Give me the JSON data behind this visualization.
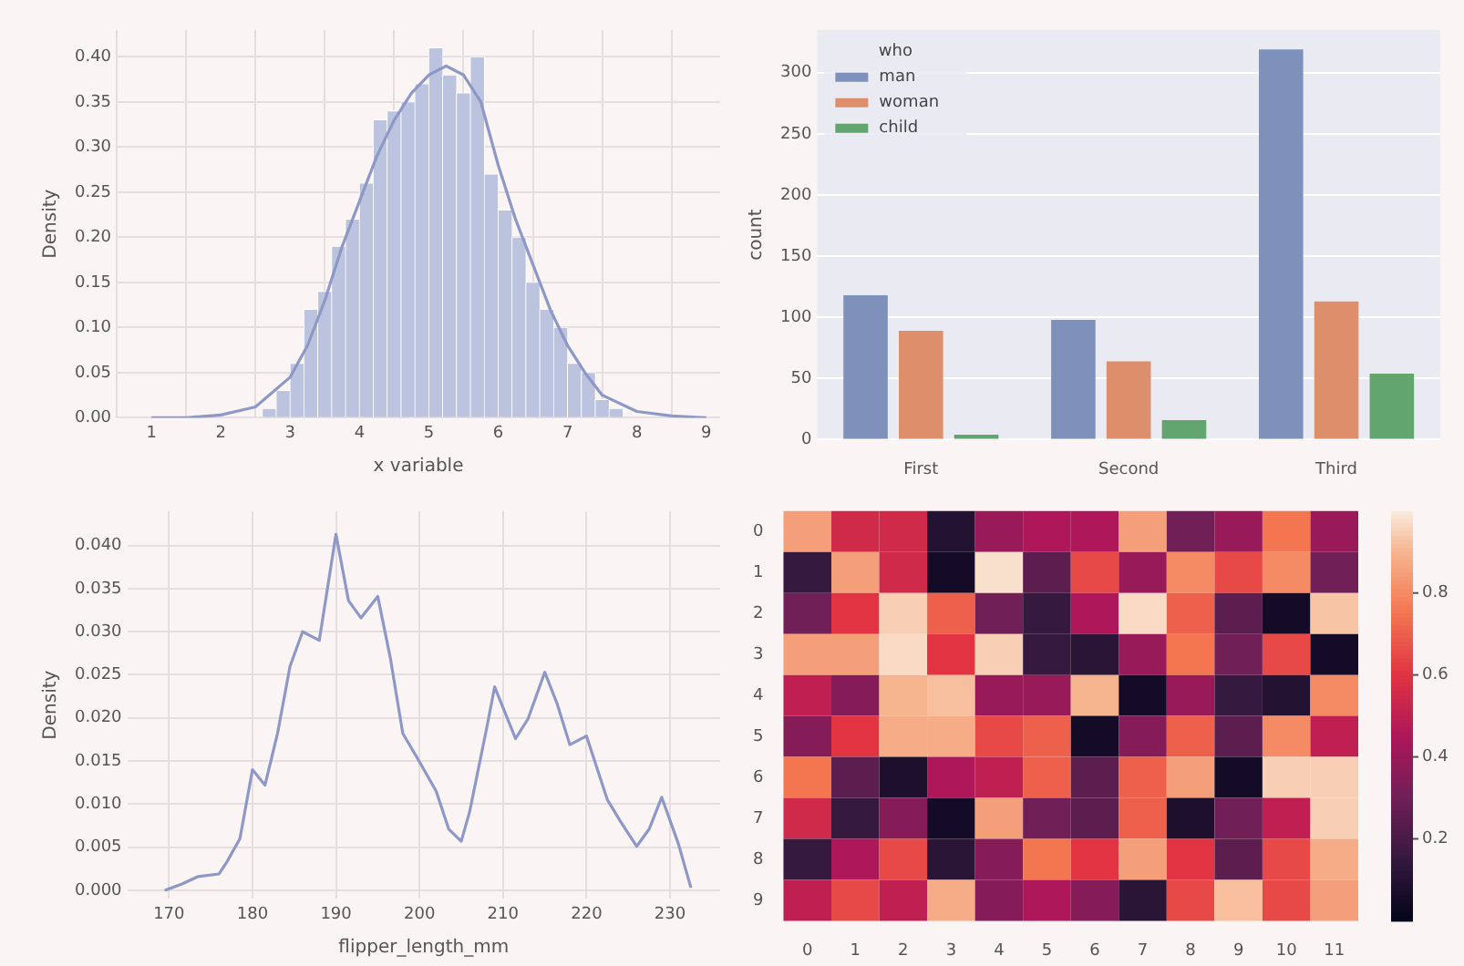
{
  "chart_data": [
    {
      "type": "histogram",
      "xlabel": "x variable",
      "ylabel": "Density",
      "bins": [
        2.6,
        2.8,
        3.0,
        3.2,
        3.4,
        3.6,
        3.8,
        4.0,
        4.2,
        4.4,
        4.6,
        4.8,
        5.0,
        5.2,
        5.4,
        5.6,
        5.8,
        6.0,
        6.2,
        6.4,
        6.6,
        6.8,
        7.0,
        7.2,
        7.4,
        7.6,
        7.8
      ],
      "values": [
        0.01,
        0.03,
        0.06,
        0.12,
        0.14,
        0.19,
        0.22,
        0.26,
        0.33,
        0.34,
        0.35,
        0.37,
        0.41,
        0.38,
        0.36,
        0.4,
        0.27,
        0.23,
        0.2,
        0.15,
        0.12,
        0.1,
        0.06,
        0.05,
        0.02,
        0.01
      ],
      "color": "#bcc3de",
      "series": [
        {
          "type": "line",
          "color": "#8e98c6",
          "x": [
            1,
            1.5,
            2,
            2.5,
            3,
            3.25,
            3.5,
            3.75,
            4,
            4.25,
            4.5,
            4.75,
            5,
            5.25,
            5.5,
            5.75,
            6,
            6.25,
            6.5,
            6.75,
            7,
            7.25,
            7.5,
            8,
            8.5,
            9
          ],
          "values": [
            0,
            0,
            0.003,
            0.012,
            0.045,
            0.08,
            0.13,
            0.19,
            0.24,
            0.29,
            0.33,
            0.36,
            0.38,
            0.39,
            0.38,
            0.35,
            0.28,
            0.22,
            0.17,
            0.12,
            0.08,
            0.05,
            0.025,
            0.007,
            0.002,
            0
          ]
        }
      ],
      "marker": "none",
      "xlim": [
        0.5,
        9.2
      ],
      "ylim": [
        0,
        0.43
      ],
      "xticks": [
        1,
        2,
        3,
        4,
        5,
        6,
        7,
        8,
        9
      ],
      "yticks": [
        {
          "value": 0,
          "label": "0.00"
        },
        {
          "value": 0.05,
          "label": "0.05"
        },
        {
          "value": 0.1,
          "label": "0.10"
        },
        {
          "value": 0.15,
          "label": "0.15"
        },
        {
          "value": 0.2,
          "label": "0.20"
        },
        {
          "value": 0.25,
          "label": "0.25"
        },
        {
          "value": 0.3,
          "label": "0.30"
        },
        {
          "value": 0.35,
          "label": "0.35"
        },
        {
          "value": 0.4,
          "label": "0.40"
        }
      ],
      "grid": true
    },
    {
      "type": "bar",
      "ylabel": "count",
      "legend_title": "who",
      "legend": "top left",
      "categories": [
        "First",
        "Second",
        "Third"
      ],
      "series": [
        {
          "name": "man",
          "color": "#7d91bb",
          "values": [
            118,
            98,
            319
          ]
        },
        {
          "name": "woman",
          "color": "#dd8f6b",
          "values": [
            89,
            64,
            113
          ]
        },
        {
          "name": "child",
          "color": "#63a56f",
          "values": [
            4,
            16,
            54
          ]
        }
      ],
      "ylim": [
        0,
        335
      ],
      "yticks": [
        0,
        50,
        100,
        150,
        200,
        250,
        300
      ],
      "grid": "y"
    },
    {
      "type": "line",
      "xlabel": "flipper_length_mm",
      "ylabel": "Density",
      "color": "#8e98c6",
      "marker": "none",
      "x": [
        169.5,
        171.5,
        173.5,
        176,
        177,
        178.5,
        180,
        181.5,
        183,
        184.5,
        186,
        188,
        190,
        191.5,
        193,
        195,
        196.5,
        198,
        200,
        202,
        203.5,
        205,
        206,
        208,
        209,
        211.5,
        213,
        215,
        216.5,
        218,
        220,
        222.5,
        224,
        226,
        227.5,
        229,
        231,
        232.5
      ],
      "values": [
        0,
        0.0007,
        0.0016,
        0.0019,
        0.0034,
        0.006,
        0.014,
        0.0122,
        0.0182,
        0.026,
        0.03,
        0.029,
        0.0413,
        0.0336,
        0.0316,
        0.0341,
        0.027,
        0.0182,
        0.0149,
        0.0115,
        0.0071,
        0.0057,
        0.0091,
        0.0186,
        0.0236,
        0.0176,
        0.0199,
        0.0253,
        0.0216,
        0.0169,
        0.0179,
        0.0105,
        0.0081,
        0.0051,
        0.0071,
        0.0108,
        0.0054,
        0.0003
      ],
      "xlim": [
        165,
        236
      ],
      "ylim": [
        -0.001,
        0.044
      ],
      "xticks": [
        170,
        180,
        190,
        200,
        210,
        220,
        230
      ],
      "yticks": [
        {
          "value": 0,
          "label": "0.000"
        },
        {
          "value": 0.005,
          "label": "0.005"
        },
        {
          "value": 0.01,
          "label": "0.010"
        },
        {
          "value": 0.015,
          "label": "0.015"
        },
        {
          "value": 0.02,
          "label": "0.020"
        },
        {
          "value": 0.025,
          "label": "0.025"
        },
        {
          "value": 0.03,
          "label": "0.030"
        },
        {
          "value": 0.035,
          "label": "0.035"
        },
        {
          "value": 0.04,
          "label": "0.040"
        }
      ],
      "grid": true
    },
    {
      "type": "heatmap",
      "categories": [
        "0",
        "1",
        "2",
        "3",
        "4",
        "5",
        "6",
        "7",
        "8",
        "9",
        "10",
        "11"
      ],
      "y_categories": [
        "0",
        "1",
        "2",
        "3",
        "4",
        "5",
        "6",
        "7",
        "8",
        "9"
      ],
      "cells": [
        [
          0.85,
          0.55,
          0.55,
          0.1,
          0.4,
          0.45,
          0.45,
          0.85,
          0.3,
          0.4,
          0.75,
          0.4
        ],
        [
          0.15,
          0.85,
          0.55,
          0.05,
          0.98,
          0.25,
          0.65,
          0.4,
          0.8,
          0.65,
          0.8,
          0.3
        ],
        [
          0.3,
          0.6,
          0.95,
          0.7,
          0.3,
          0.15,
          0.45,
          0.97,
          0.7,
          0.25,
          0.05,
          0.93
        ],
        [
          0.85,
          0.85,
          0.97,
          0.6,
          0.95,
          0.15,
          0.12,
          0.4,
          0.75,
          0.3,
          0.65,
          0.05
        ],
        [
          0.5,
          0.35,
          0.9,
          0.92,
          0.4,
          0.4,
          0.9,
          0.05,
          0.4,
          0.15,
          0.1,
          0.8
        ],
        [
          0.35,
          0.6,
          0.88,
          0.88,
          0.65,
          0.7,
          0.05,
          0.35,
          0.7,
          0.25,
          0.8,
          0.5
        ],
        [
          0.75,
          0.25,
          0.08,
          0.45,
          0.5,
          0.7,
          0.25,
          0.7,
          0.85,
          0.05,
          0.95,
          0.95
        ],
        [
          0.55,
          0.15,
          0.35,
          0.05,
          0.85,
          0.3,
          0.25,
          0.7,
          0.08,
          0.3,
          0.5,
          0.95
        ],
        [
          0.15,
          0.45,
          0.65,
          0.12,
          0.35,
          0.75,
          0.6,
          0.85,
          0.6,
          0.25,
          0.65,
          0.88
        ],
        [
          0.5,
          0.65,
          0.5,
          0.88,
          0.35,
          0.45,
          0.35,
          0.12,
          0.65,
          0.92,
          0.65,
          0.85
        ]
      ],
      "clim": [
        0,
        1
      ],
      "cticks": [
        0.2,
        0.4,
        0.6,
        0.8
      ]
    }
  ]
}
